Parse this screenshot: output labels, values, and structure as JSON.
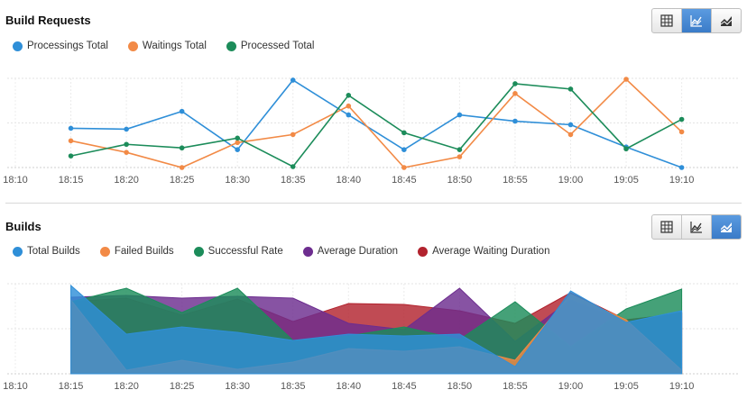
{
  "panels": [
    {
      "title": "Build Requests",
      "view_buttons": [
        "table-icon",
        "line-chart-icon",
        "area-chart-icon"
      ],
      "active_view": 1,
      "legend": [
        {
          "name": "Processings Total",
          "color": "#2f8fd8"
        },
        {
          "name": "Waitings Total",
          "color": "#f28a46"
        },
        {
          "name": "Processed Total",
          "color": "#1c8c5a"
        }
      ]
    },
    {
      "title": "Builds",
      "view_buttons": [
        "table-icon",
        "line-chart-icon",
        "area-chart-icon"
      ],
      "active_view": 2,
      "legend": [
        {
          "name": "Total Builds",
          "color": "#2f8fd8"
        },
        {
          "name": "Failed Builds",
          "color": "#f28a46"
        },
        {
          "name": "Successful Rate",
          "color": "#1c8c5a"
        },
        {
          "name": "Average Duration",
          "color": "#6d2d8f"
        },
        {
          "name": "Average Waiting Duration",
          "color": "#b2232e"
        }
      ]
    }
  ],
  "chart_data": [
    {
      "type": "line",
      "title": "Build Requests",
      "x_ticks": [
        "18:10",
        "18:15",
        "18:20",
        "18:25",
        "18:30",
        "18:35",
        "18:40",
        "18:45",
        "18:50",
        "18:55",
        "19:00",
        "19:05",
        "19:10"
      ],
      "categories": [
        "18:15",
        "18:20",
        "18:25",
        "18:30",
        "18:35",
        "18:40",
        "18:45",
        "18:50",
        "18:55",
        "19:00",
        "19:05",
        "19:10"
      ],
      "ylim": [
        0,
        100
      ],
      "grid": true,
      "legend_position": "top-left",
      "series": [
        {
          "name": "Processings Total",
          "color": "#2f8fd8",
          "values": [
            44,
            43,
            63,
            20,
            98,
            59,
            20,
            59,
            52,
            48,
            23,
            0
          ]
        },
        {
          "name": "Waitings Total",
          "color": "#f28a46",
          "values": [
            30,
            17,
            0,
            28,
            37,
            69,
            0,
            12,
            83,
            37,
            99,
            40
          ]
        },
        {
          "name": "Processed Total",
          "color": "#1c8c5a",
          "values": [
            13,
            26,
            22,
            33,
            1,
            81,
            39,
            20,
            94,
            88,
            21,
            54
          ]
        }
      ]
    },
    {
      "type": "area",
      "title": "Builds",
      "x_ticks": [
        "18:10",
        "18:15",
        "18:20",
        "18:25",
        "18:30",
        "18:35",
        "18:40",
        "18:45",
        "18:50",
        "18:55",
        "19:00",
        "19:05",
        "19:10"
      ],
      "categories": [
        "18:15",
        "18:20",
        "18:25",
        "18:30",
        "18:35",
        "18:40",
        "18:45",
        "18:50",
        "18:55",
        "19:00",
        "19:05",
        "19:10"
      ],
      "ylim": [
        0,
        100
      ],
      "grid": true,
      "legend_position": "top-left",
      "series": [
        {
          "name": "Average Waiting Duration",
          "color": "#b2232e",
          "values": [
            80,
            84,
            65,
            83,
            58,
            78,
            77,
            70,
            56,
            90,
            60,
            67
          ]
        },
        {
          "name": "Average Duration",
          "color": "#6d2d8f",
          "values": [
            85,
            87,
            84,
            86,
            84,
            56,
            49,
            95,
            36,
            82,
            58,
            68
          ]
        },
        {
          "name": "Successful Rate",
          "color": "#1c8c5a",
          "values": [
            80,
            95,
            68,
            95,
            37,
            42,
            52,
            38,
            80,
            30,
            72,
            94
          ]
        },
        {
          "name": "Failed Builds",
          "color": "#f28a46",
          "values": [
            82,
            4,
            15,
            5,
            13,
            28,
            25,
            30,
            15,
            88,
            60,
            4
          ]
        },
        {
          "name": "Total Builds",
          "color": "#2f8fd8",
          "values": [
            98,
            44,
            52,
            46,
            37,
            44,
            42,
            44,
            8,
            92,
            57,
            70
          ]
        }
      ]
    }
  ]
}
